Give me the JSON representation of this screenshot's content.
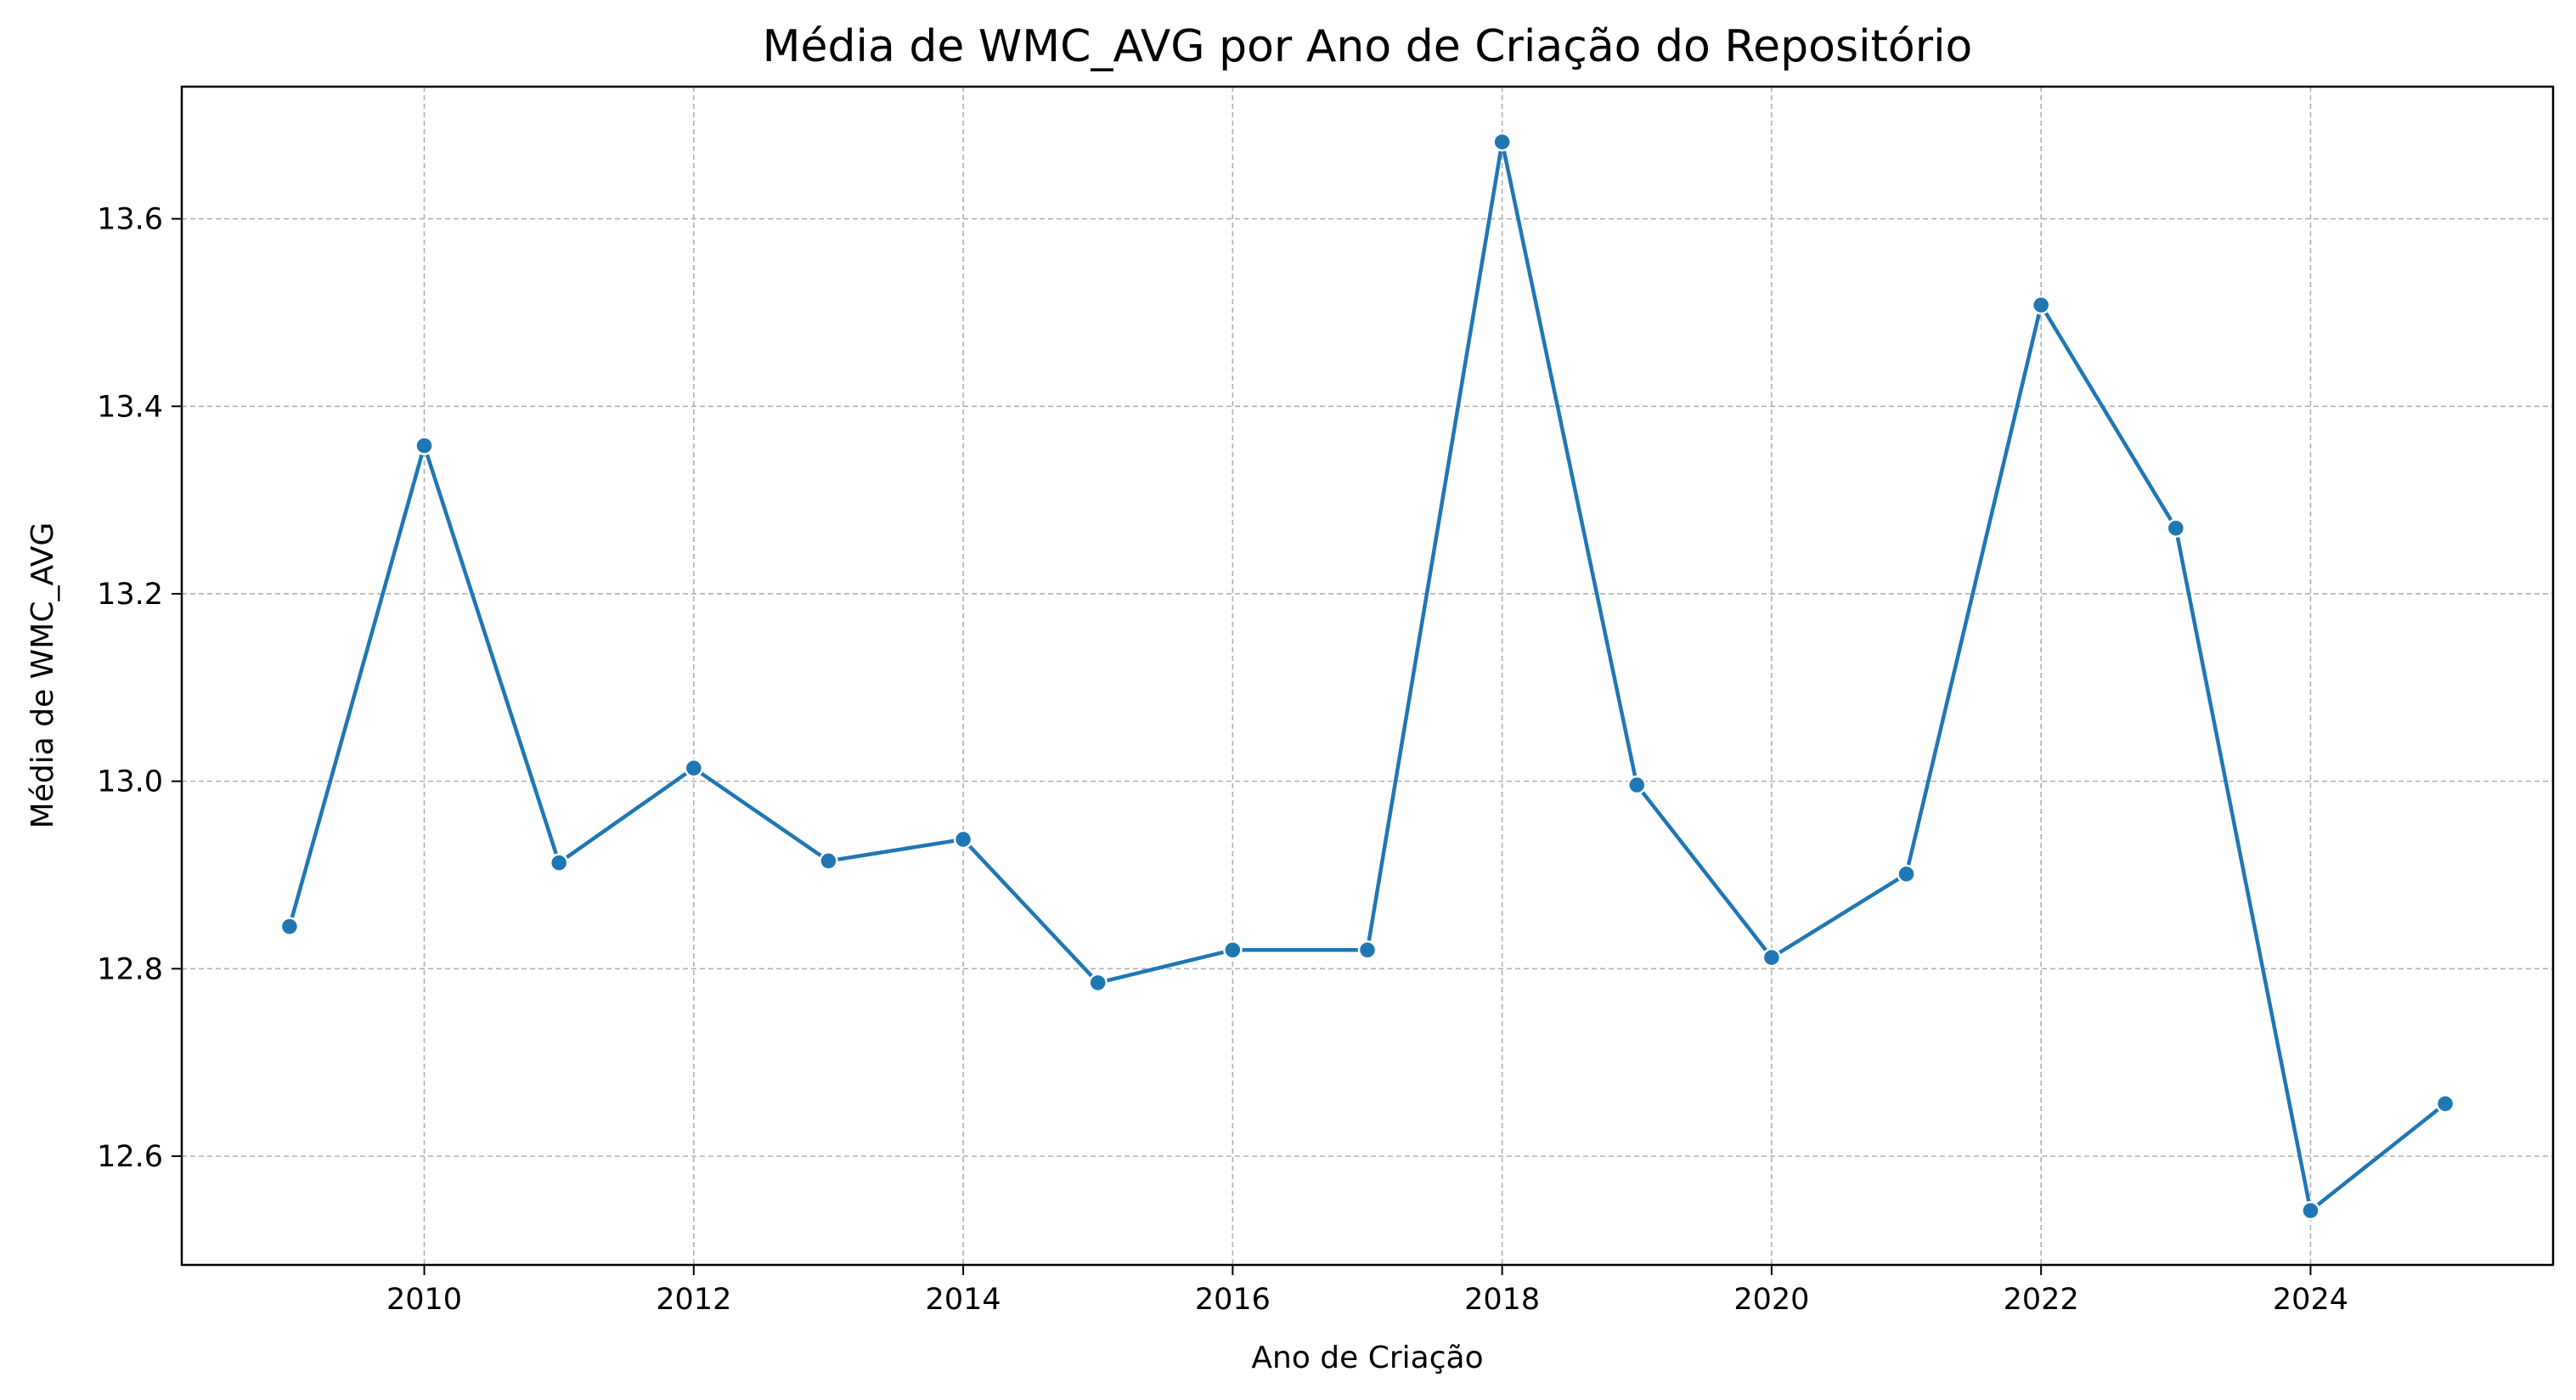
{
  "colors": {
    "series": "#1f77b4",
    "grid": "#b0b0b0",
    "axes": "#000000",
    "background": "#ffffff"
  },
  "chart_data": {
    "type": "line",
    "title": "Média de WMC_AVG por Ano de Criação do Repositório",
    "xlabel": "Ano de Criação",
    "ylabel": "Média de WMC_AVG",
    "xlim": [
      2008.2,
      2025.8
    ],
    "ylim": [
      12.484,
      13.741
    ],
    "grid": true,
    "x_ticks": [
      "2010",
      "2012",
      "2014",
      "2016",
      "2018",
      "2020",
      "2022",
      "2024"
    ],
    "y_ticks": [
      "12.6",
      "12.8",
      "13.0",
      "13.2",
      "13.4",
      "13.6"
    ],
    "x": [
      2009,
      2010,
      2011,
      2012,
      2013,
      2014,
      2015,
      2016,
      2017,
      2018,
      2019,
      2020,
      2021,
      2022,
      2023,
      2024,
      2025
    ],
    "series": [
      {
        "values": [
          12.845,
          13.358,
          12.913,
          13.014,
          12.915,
          12.938,
          12.785,
          12.82,
          12.82,
          13.682,
          12.996,
          12.812,
          12.901,
          13.508,
          13.27,
          12.542,
          12.656
        ]
      }
    ]
  }
}
